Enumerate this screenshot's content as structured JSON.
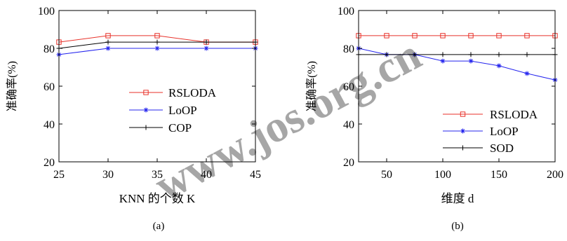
{
  "watermark": "www.jos.org.cn",
  "chart_data": [
    {
      "type": "line",
      "panel_label": "(a)",
      "xlabel": "KNN 的个数 K",
      "ylabel": "准确率(%)",
      "x": [
        25,
        30,
        35,
        40,
        45
      ],
      "xlim": [
        25,
        45
      ],
      "ylim": [
        20,
        100
      ],
      "xticks": [
        25,
        30,
        35,
        40,
        45
      ],
      "yticks": [
        20,
        40,
        60,
        80,
        100
      ],
      "grid": false,
      "legend_position": "center-right",
      "series": [
        {
          "name": "RSLODA",
          "color": "#e8322a",
          "marker": "square",
          "values": [
            83.3,
            86.7,
            86.7,
            83.3,
            83.3
          ]
        },
        {
          "name": "LoOP",
          "color": "#2424ee",
          "marker": "star",
          "values": [
            76.7,
            80,
            80,
            80,
            80
          ]
        },
        {
          "name": "COP",
          "color": "#000000",
          "marker": "plus",
          "values": [
            80,
            83.3,
            83.3,
            83.3,
            83.3
          ]
        }
      ]
    },
    {
      "type": "line",
      "panel_label": "(b)",
      "xlabel": "维度 d",
      "ylabel": "准确率(%)",
      "x": [
        25,
        50,
        75,
        100,
        125,
        150,
        175,
        200
      ],
      "xlim": [
        25,
        200
      ],
      "ylim": [
        20,
        100
      ],
      "xticks": [
        50,
        100,
        150,
        200
      ],
      "yticks": [
        20,
        40,
        60,
        80,
        100
      ],
      "grid": false,
      "legend_position": "bottom-right",
      "series": [
        {
          "name": "RSLODA",
          "color": "#e8322a",
          "marker": "square",
          "values": [
            86.7,
            86.7,
            86.7,
            86.7,
            86.7,
            86.7,
            86.7,
            86.7
          ]
        },
        {
          "name": "LoOP",
          "color": "#2424ee",
          "marker": "star",
          "values": [
            80,
            76.7,
            76.7,
            73.3,
            73.3,
            70.8,
            66.7,
            63.3
          ]
        },
        {
          "name": "SOD",
          "color": "#000000",
          "marker": "plus",
          "values": [
            76.7,
            76.7,
            76.7,
            76.7,
            76.7,
            76.7,
            76.7,
            76.7
          ]
        }
      ]
    }
  ]
}
